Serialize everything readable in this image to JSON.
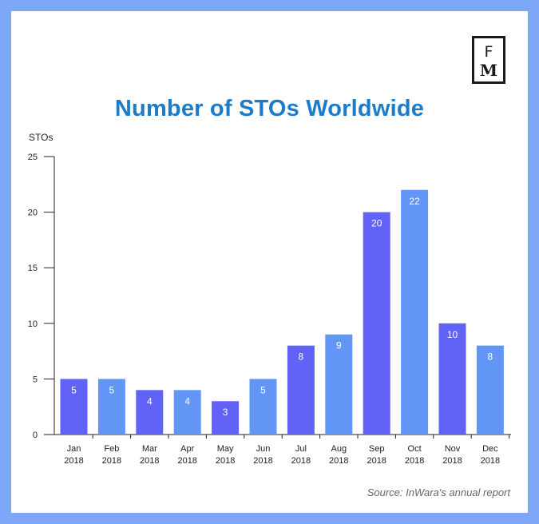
{
  "logo": {
    "line1": "F",
    "line2": "M"
  },
  "source": "Source: InWara's annual report",
  "colors": {
    "bar_dark": "#6063f5",
    "bar_light": "#6196f7",
    "title": "#1c7cc9",
    "border": "#7ea7f7"
  },
  "chart_data": {
    "type": "bar",
    "title": "Number of STOs Worldwide",
    "ylabel": "STOs",
    "xlabel": "",
    "ylim": [
      0,
      25
    ],
    "yticks": [
      0,
      5,
      10,
      15,
      20,
      25
    ],
    "categories": [
      [
        "Jan",
        "2018"
      ],
      [
        "Feb",
        "2018"
      ],
      [
        "Mar",
        "2018"
      ],
      [
        "Apr",
        "2018"
      ],
      [
        "May",
        "2018"
      ],
      [
        "Jun",
        "2018"
      ],
      [
        "Jul",
        "2018"
      ],
      [
        "Aug",
        "2018"
      ],
      [
        "Sep",
        "2018"
      ],
      [
        "Oct",
        "2018"
      ],
      [
        "Nov",
        "2018"
      ],
      [
        "Dec",
        "2018"
      ]
    ],
    "values": [
      5,
      5,
      4,
      4,
      3,
      5,
      8,
      9,
      20,
      22,
      10,
      8
    ],
    "bar_colors": [
      "dark",
      "light",
      "dark",
      "light",
      "dark",
      "light",
      "dark",
      "light",
      "dark",
      "light",
      "dark",
      "light"
    ]
  }
}
